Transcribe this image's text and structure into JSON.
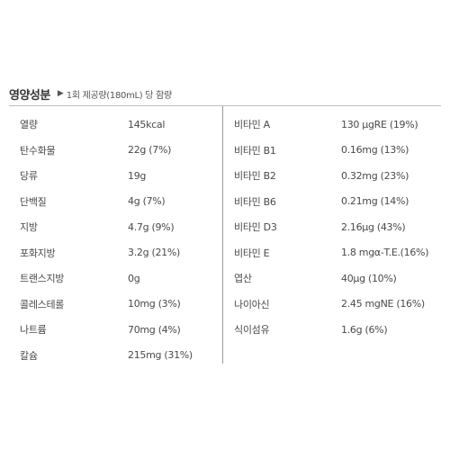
{
  "header": {
    "title": "영양성분",
    "arrow": "▶",
    "note": "1회 제공량(180mL) 당 함량"
  },
  "left_rows": [
    {
      "name": "열량",
      "value": "145kcal"
    },
    {
      "name": "탄수화물",
      "value": "22g (7%)"
    },
    {
      "name": "당류",
      "value": "19g"
    },
    {
      "name": "단백질",
      "value": "4g (7%)"
    },
    {
      "name": "지방",
      "value": "4.7g (9%)"
    },
    {
      "name": "포화지방",
      "value": "3.2g (21%)"
    },
    {
      "name": "트랜스지방",
      "value": "0g"
    },
    {
      "name": "콜레스테롤",
      "value": "10mg (3%)"
    },
    {
      "name": "나트륨",
      "value": "70mg (4%)"
    },
    {
      "name": "칼슘",
      "value": "215mg (31%)"
    }
  ],
  "right_rows": [
    {
      "name": "비타민 A",
      "value": "130 μgRE (19%)"
    },
    {
      "name": "비타민 B1",
      "value": "0.16mg (13%)"
    },
    {
      "name": "비타민 B2",
      "value": "0.32mg (23%)"
    },
    {
      "name": "비타민 B6",
      "value": "0.21mg (14%)"
    },
    {
      "name": "비타민 D3",
      "value": "2.16μg (43%)"
    },
    {
      "name": "비타민 E",
      "value": "1.8 mgα-T.E.(16%)"
    },
    {
      "name": "엽산",
      "value": "40μg (10%)"
    },
    {
      "name": "나이아신",
      "value": "2.45 mgNE (16%)"
    },
    {
      "name": "식이섬유",
      "value": "1.6g (6%)"
    }
  ]
}
